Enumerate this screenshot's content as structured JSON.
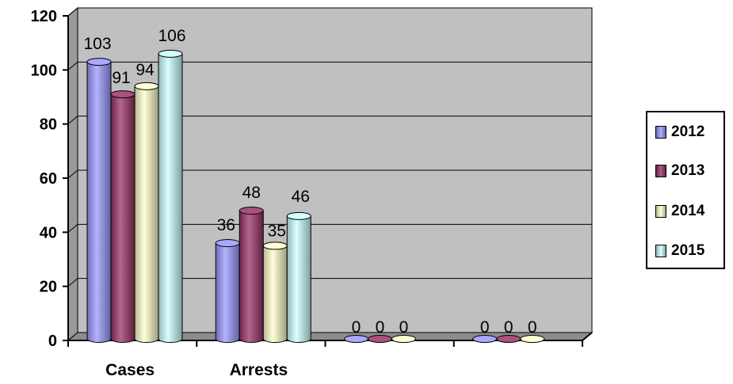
{
  "chart_data": {
    "type": "bar",
    "categories": [
      "Cases",
      "Arrests",
      "",
      ""
    ],
    "series": [
      {
        "name": "2012",
        "values": [
          103,
          36,
          0,
          0
        ],
        "color": "#9999ff"
      },
      {
        "name": "2013",
        "values": [
          91,
          48,
          0,
          0
        ],
        "color": "#993366"
      },
      {
        "name": "2014",
        "values": [
          94,
          35,
          0,
          0
        ],
        "color": "#ffffcc"
      },
      {
        "name": "2015",
        "values": [
          106,
          46,
          null,
          null
        ],
        "color": "#ccffff"
      }
    ],
    "data_labels": [
      [
        "103",
        "36",
        "0",
        "0"
      ],
      [
        "91",
        "48",
        "0",
        "0"
      ],
      [
        "94",
        "35",
        "0",
        "0"
      ],
      [
        "106",
        "46",
        "",
        ""
      ]
    ],
    "y_ticks": [
      "0",
      "20",
      "40",
      "60",
      "80",
      "100",
      "120"
    ],
    "ylim": [
      0,
      120
    ],
    "grid": true,
    "legend_position": "right",
    "plot_background": "#c0c0c0"
  }
}
